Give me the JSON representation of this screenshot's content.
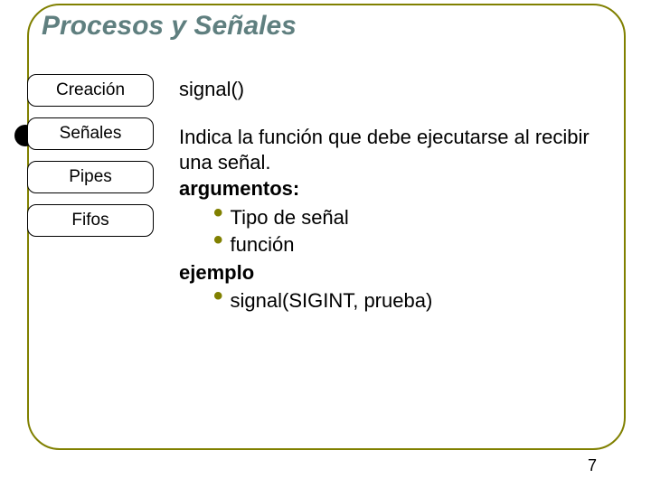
{
  "title": "Procesos y Señales",
  "nav": {
    "items": [
      {
        "label": "Creación"
      },
      {
        "label": "Señales"
      },
      {
        "label": "Pipes"
      },
      {
        "label": "Fifos"
      }
    ],
    "active_index": 1
  },
  "content": {
    "function_name": "signal()",
    "description": "Indica la función que debe ejecutarse al recibir una señal.",
    "arguments_label": "argumentos:",
    "arguments": [
      "Tipo de señal",
      "función"
    ],
    "example_label": "ejemplo",
    "example_items": [
      "signal(SIGINT, prueba)"
    ]
  },
  "page_number": "7",
  "colors": {
    "frame_border": "#808000",
    "title_color": "#5f7f7f",
    "bullet_color": "#808000",
    "active_dot": "#000000",
    "text": "#000000",
    "background": "#ffffff"
  }
}
